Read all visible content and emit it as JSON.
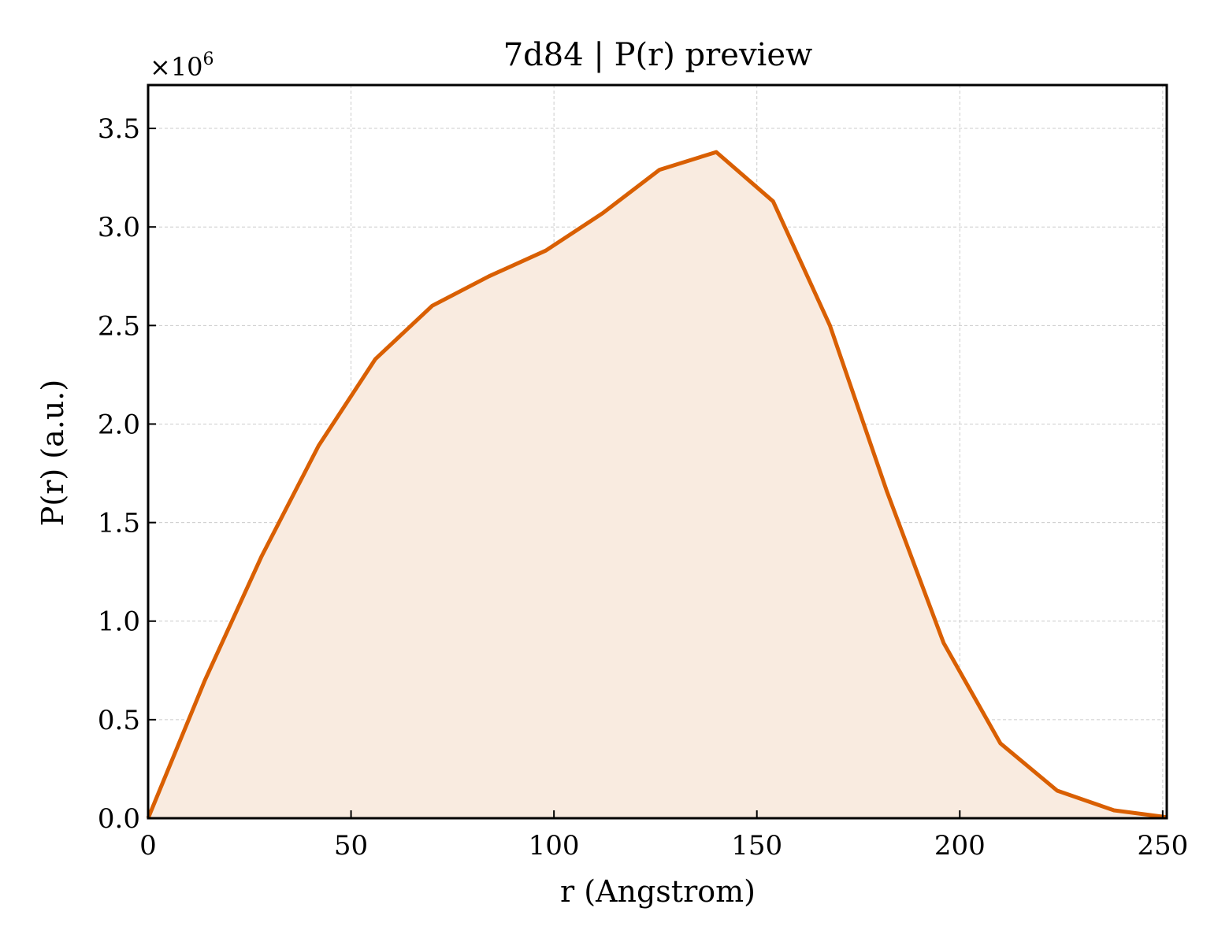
{
  "chart_data": {
    "type": "area",
    "title": "7d84 | P(r) preview",
    "xlabel": "r (Angstrom)",
    "ylabel": "P(r) (a.u.)",
    "y_multiplier_base": "×10",
    "y_multiplier_exp": "6",
    "xlim": [
      0,
      251
    ],
    "ylim": [
      0,
      3.72
    ],
    "xticks": [
      0,
      50,
      100,
      150,
      200,
      250
    ],
    "xtick_labels": [
      "0",
      "50",
      "100",
      "150",
      "200",
      "250"
    ],
    "yticks": [
      0,
      0.5,
      1.0,
      1.5,
      2.0,
      2.5,
      3.0,
      3.5
    ],
    "ytick_labels": [
      "0.0",
      "0.5",
      "1.0",
      "1.5",
      "2.0",
      "2.5",
      "3.0",
      "3.5"
    ],
    "grid": true,
    "x": [
      0,
      14,
      28,
      42,
      56,
      70,
      84,
      98,
      112,
      126,
      140,
      154,
      168,
      182,
      196,
      210,
      224,
      238,
      251
    ],
    "y": [
      0.0,
      0.7,
      1.33,
      1.89,
      2.33,
      2.6,
      2.75,
      2.88,
      3.07,
      3.29,
      3.38,
      3.13,
      2.5,
      1.66,
      0.89,
      0.38,
      0.14,
      0.04,
      0.005
    ],
    "line_color": "#d95f02",
    "fill_color": "#f9ebe0"
  }
}
